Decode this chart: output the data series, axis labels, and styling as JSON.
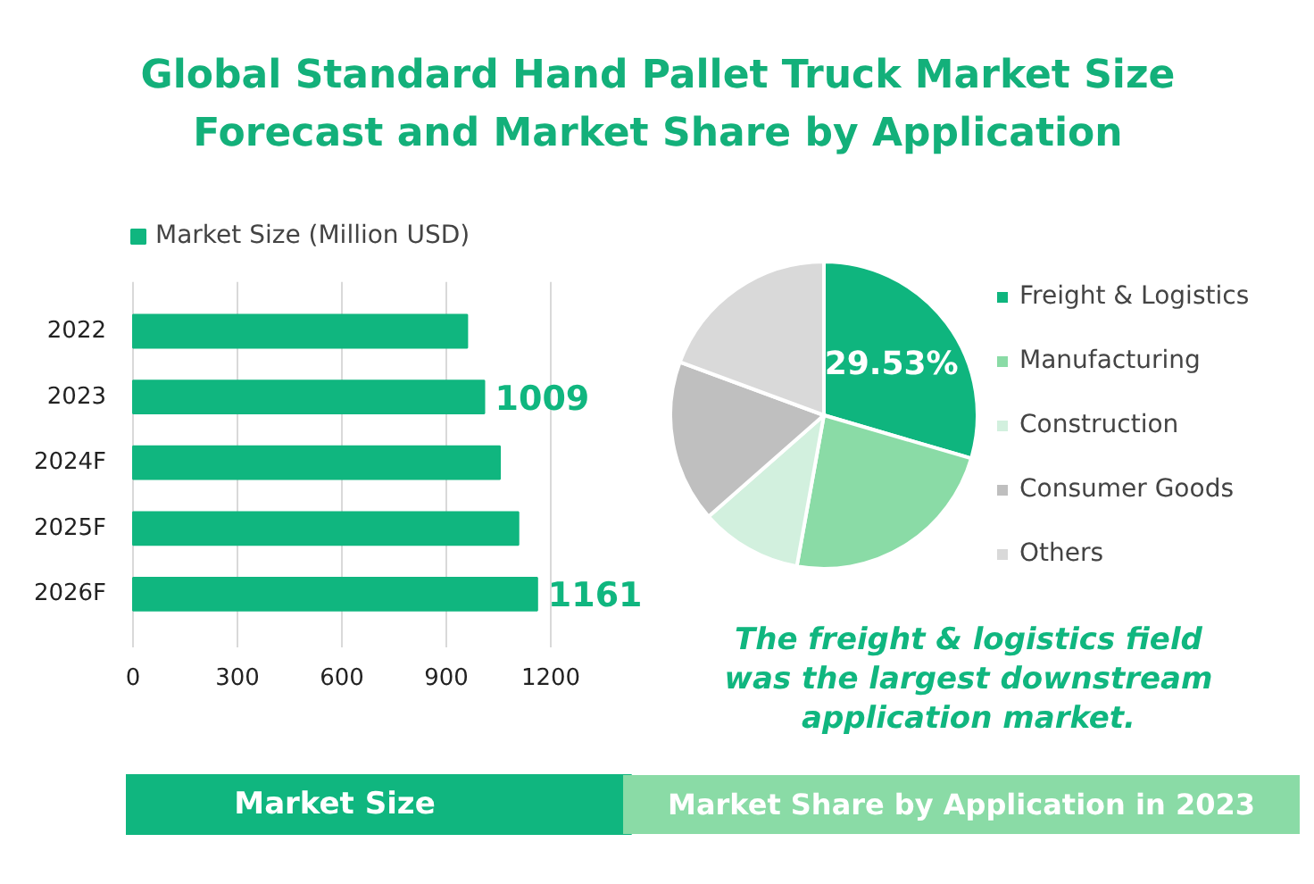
{
  "chart_data": [
    {
      "type": "bar",
      "title": "Global Standard Hand Pallet Truck Market Size\nForecast and Market Share by Application",
      "subtitle": "Market Size",
      "orientation": "horizontal",
      "categories": [
        "2022",
        "2023",
        "2024F",
        "2025F",
        "2026F"
      ],
      "series": [
        {
          "name": "Market Size (Million USD)",
          "color": "#10b67f",
          "values": [
            960,
            1009,
            1054,
            1107,
            1161
          ],
          "value_labels": [
            null,
            "1009",
            null,
            null,
            "1161"
          ]
        }
      ],
      "xlim": [
        0,
        1200
      ],
      "xticks": [
        0,
        300,
        600,
        900,
        1200
      ],
      "grid": "x",
      "legend": "top"
    },
    {
      "type": "pie",
      "title": "Market Share by Application in 2023",
      "categories": [
        "Freight & Logistics",
        "Manufacturing",
        "Construction",
        "Consumer Goods",
        "Others"
      ],
      "values": [
        29.53,
        23.3,
        10.7,
        17.1,
        19.37
      ],
      "colors": [
        "#0fb57e",
        "#8adba6",
        "#d2f0de",
        "#bfbfbf",
        "#d9d9d9"
      ],
      "value_labels": [
        "29.53%",
        null,
        null,
        null,
        null
      ],
      "legend": "right",
      "annotations": [
        "The freight & logistics field\nwas the largest downstream\napplication market."
      ]
    }
  ]
}
